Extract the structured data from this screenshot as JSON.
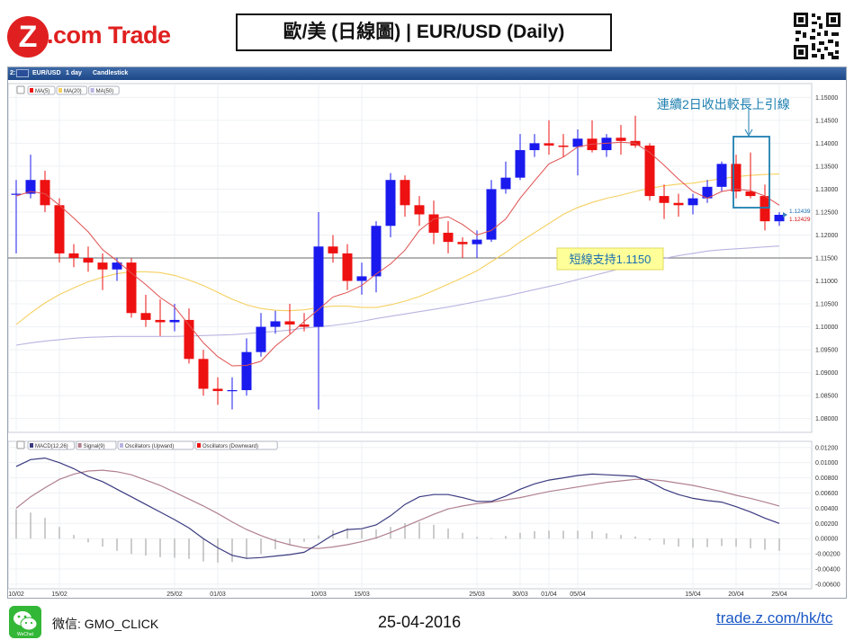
{
  "header": {
    "logo_letter": "Z",
    "logo_text": ".com Trade",
    "title": "歐/美 (日線圖) | EUR/USD  (Daily)"
  },
  "toolbar": {
    "symbol": "EUR/USD",
    "period": "1 day",
    "style": "Candlestick",
    "flag_icon": "eu-flag-icon"
  },
  "colors": {
    "up": "#1a1aee",
    "down": "#ee1111",
    "ma5": "#e05050",
    "ma20": "#f5d060",
    "ma50": "#b8b4e0",
    "macd": "#3a3a80",
    "signal": "#b08090",
    "hist": "#999999",
    "support": "#888888",
    "callout": "#1e7fb0"
  },
  "annotations": {
    "callout": "連續2日收出較長上引線",
    "support": "短線支持1.1150",
    "ask": "1.12439",
    "bid": "1.12429"
  },
  "footer": {
    "wechat_label": "WeChat",
    "wechat_id": "微信: GMO_CLICK",
    "date": "25-04-2016",
    "link": "trade.z.com/hk/tc"
  },
  "chart_data": [
    {
      "type": "candlestick",
      "title": "",
      "legend": [
        "MA(5)",
        "MA(20)",
        "MA(50)"
      ],
      "legend_position": "top-left",
      "y_ticks": [
        "1.15000",
        "1.14500",
        "1.14000",
        "1.13500",
        "1.13000",
        "1.12500",
        "1.12000",
        "1.11500",
        "1.11000",
        "1.10500",
        "1.10000",
        "1.09500",
        "1.09000",
        "1.08500",
        "1.08000"
      ],
      "ylim": [
        1.077,
        1.153
      ],
      "x_ticks": [
        {
          "label": "10/02",
          "i": 0
        },
        {
          "label": "15/02",
          "i": 3
        },
        {
          "label": "25/02",
          "i": 11
        },
        {
          "label": "01/03",
          "i": 14
        },
        {
          "label": "10/03",
          "i": 21
        },
        {
          "label": "15/03",
          "i": 24
        },
        {
          "label": "25/03",
          "i": 32
        },
        {
          "label": "30/03",
          "i": 35
        },
        {
          "label": "01/04",
          "i": 37
        },
        {
          "label": "05/04",
          "i": 39
        },
        {
          "label": "15/04",
          "i": 47
        },
        {
          "label": "20/04",
          "i": 50
        },
        {
          "label": "25/04",
          "i": 53
        }
      ],
      "candles": [
        {
          "o": 1.129,
          "h": 1.132,
          "l": 1.116,
          "c": 1.129
        },
        {
          "o": 1.129,
          "h": 1.1375,
          "l": 1.128,
          "c": 1.132
        },
        {
          "o": 1.132,
          "h": 1.134,
          "l": 1.125,
          "c": 1.1265
        },
        {
          "o": 1.1265,
          "h": 1.128,
          "l": 1.114,
          "c": 1.116
        },
        {
          "o": 1.116,
          "h": 1.118,
          "l": 1.113,
          "c": 1.115
        },
        {
          "o": 1.115,
          "h": 1.1175,
          "l": 1.112,
          "c": 1.114
        },
        {
          "o": 1.114,
          "h": 1.116,
          "l": 1.108,
          "c": 1.1125
        },
        {
          "o": 1.1125,
          "h": 1.115,
          "l": 1.11,
          "c": 1.114
        },
        {
          "o": 1.114,
          "h": 1.115,
          "l": 1.102,
          "c": 1.103
        },
        {
          "o": 1.103,
          "h": 1.107,
          "l": 1.1,
          "c": 1.1015
        },
        {
          "o": 1.1015,
          "h": 1.106,
          "l": 1.098,
          "c": 1.101
        },
        {
          "o": 1.101,
          "h": 1.105,
          "l": 1.099,
          "c": 1.1015
        },
        {
          "o": 1.1015,
          "h": 1.104,
          "l": 1.092,
          "c": 1.093
        },
        {
          "o": 1.093,
          "h": 1.095,
          "l": 1.085,
          "c": 1.0865
        },
        {
          "o": 1.0865,
          "h": 1.089,
          "l": 1.083,
          "c": 1.086
        },
        {
          "o": 1.086,
          "h": 1.089,
          "l": 1.082,
          "c": 1.0862
        },
        {
          "o": 1.0862,
          "h": 1.0975,
          "l": 1.085,
          "c": 1.0945
        },
        {
          "o": 1.0945,
          "h": 1.103,
          "l": 1.0935,
          "c": 1.1
        },
        {
          "o": 1.1,
          "h": 1.1035,
          "l": 1.0985,
          "c": 1.1012
        },
        {
          "o": 1.1012,
          "h": 1.105,
          "l": 1.0985,
          "c": 1.1005
        },
        {
          "o": 1.1005,
          "h": 1.103,
          "l": 1.099,
          "c": 1.1
        },
        {
          "o": 1.1,
          "h": 1.125,
          "l": 1.082,
          "c": 1.1175
        },
        {
          "o": 1.1175,
          "h": 1.12,
          "l": 1.114,
          "c": 1.116
        },
        {
          "o": 1.116,
          "h": 1.118,
          "l": 1.108,
          "c": 1.11
        },
        {
          "o": 1.11,
          "h": 1.114,
          "l": 1.107,
          "c": 1.111
        },
        {
          "o": 1.111,
          "h": 1.123,
          "l": 1.1075,
          "c": 1.122
        },
        {
          "o": 1.122,
          "h": 1.1335,
          "l": 1.1195,
          "c": 1.132
        },
        {
          "o": 1.132,
          "h": 1.133,
          "l": 1.124,
          "c": 1.1265
        },
        {
          "o": 1.1265,
          "h": 1.1285,
          "l": 1.122,
          "c": 1.1245
        },
        {
          "o": 1.1245,
          "h": 1.1275,
          "l": 1.118,
          "c": 1.1205
        },
        {
          "o": 1.1205,
          "h": 1.123,
          "l": 1.116,
          "c": 1.1185
        },
        {
          "o": 1.1185,
          "h": 1.1195,
          "l": 1.115,
          "c": 1.118
        },
        {
          "o": 1.118,
          "h": 1.121,
          "l": 1.115,
          "c": 1.119
        },
        {
          "o": 1.119,
          "h": 1.132,
          "l": 1.1185,
          "c": 1.13
        },
        {
          "o": 1.13,
          "h": 1.136,
          "l": 1.129,
          "c": 1.1325
        },
        {
          "o": 1.1325,
          "h": 1.142,
          "l": 1.132,
          "c": 1.1385
        },
        {
          "o": 1.1385,
          "h": 1.142,
          "l": 1.137,
          "c": 1.14
        },
        {
          "o": 1.14,
          "h": 1.145,
          "l": 1.1375,
          "c": 1.1395
        },
        {
          "o": 1.1395,
          "h": 1.142,
          "l": 1.137,
          "c": 1.1392
        },
        {
          "o": 1.1392,
          "h": 1.143,
          "l": 1.133,
          "c": 1.141
        },
        {
          "o": 1.141,
          "h": 1.145,
          "l": 1.138,
          "c": 1.1385
        },
        {
          "o": 1.1385,
          "h": 1.142,
          "l": 1.137,
          "c": 1.1412
        },
        {
          "o": 1.1412,
          "h": 1.144,
          "l": 1.1375,
          "c": 1.1405
        },
        {
          "o": 1.1405,
          "h": 1.146,
          "l": 1.139,
          "c": 1.1395
        },
        {
          "o": 1.1395,
          "h": 1.14,
          "l": 1.1275,
          "c": 1.1285
        },
        {
          "o": 1.1285,
          "h": 1.131,
          "l": 1.1235,
          "c": 1.127
        },
        {
          "o": 1.127,
          "h": 1.129,
          "l": 1.124,
          "c": 1.1265
        },
        {
          "o": 1.1265,
          "h": 1.129,
          "l": 1.1245,
          "c": 1.128
        },
        {
          "o": 1.128,
          "h": 1.132,
          "l": 1.127,
          "c": 1.1305
        },
        {
          "o": 1.1305,
          "h": 1.136,
          "l": 1.1295,
          "c": 1.1355
        },
        {
          "o": 1.1355,
          "h": 1.1375,
          "l": 1.128,
          "c": 1.1295
        },
        {
          "o": 1.1295,
          "h": 1.138,
          "l": 1.128,
          "c": 1.1285
        },
        {
          "o": 1.1285,
          "h": 1.131,
          "l": 1.121,
          "c": 1.123
        },
        {
          "o": 1.123,
          "h": 1.125,
          "l": 1.122,
          "c": 1.1244
        }
      ],
      "ma5": [
        1.1285,
        1.1295,
        1.129,
        1.1265,
        1.1237,
        1.1207,
        1.1168,
        1.1144,
        1.1117,
        1.1092,
        1.1064,
        1.1043,
        1.1004,
        1.0965,
        1.0935,
        1.0915,
        1.0916,
        1.0925,
        1.0958,
        1.0983,
        1.1012,
        1.1038,
        1.1065,
        1.1075,
        1.109,
        1.1115,
        1.1137,
        1.1167,
        1.121,
        1.1235,
        1.124,
        1.1223,
        1.12,
        1.121,
        1.1235,
        1.128,
        1.1318,
        1.1355,
        1.137,
        1.1392,
        1.1398,
        1.14,
        1.1402,
        1.14,
        1.138,
        1.1352,
        1.1322,
        1.1295,
        1.128,
        1.1295,
        1.13,
        1.1297,
        1.1285,
        1.1265
      ],
      "ma20": [
        1.1005,
        1.103,
        1.1052,
        1.107,
        1.1085,
        1.1098,
        1.1108,
        1.1116,
        1.112,
        1.112,
        1.1118,
        1.1112,
        1.1102,
        1.109,
        1.1075,
        1.106,
        1.1048,
        1.104,
        1.1036,
        1.1035,
        1.1037,
        1.1042,
        1.1045,
        1.1045,
        1.1042,
        1.1042,
        1.1048,
        1.1056,
        1.1066,
        1.1079,
        1.1093,
        1.1107,
        1.1122,
        1.1142,
        1.1162,
        1.1185,
        1.1205,
        1.1225,
        1.1245,
        1.126,
        1.1271,
        1.128,
        1.1287,
        1.1295,
        1.1302,
        1.1307,
        1.1311,
        1.1313,
        1.1318,
        1.1323,
        1.1327,
        1.133,
        1.1332,
        1.1333
      ],
      "ma50": [
        1.096,
        1.0965,
        1.0969,
        1.0972,
        1.0975,
        1.0977,
        1.0978,
        1.0979,
        1.0979,
        1.0979,
        1.0979,
        1.0979,
        1.098,
        1.0981,
        1.0982,
        1.0983,
        1.0985,
        1.0988,
        1.099,
        1.0993,
        1.0997,
        1.1,
        1.1003,
        1.1007,
        1.1012,
        1.1018,
        1.1023,
        1.1028,
        1.1033,
        1.1038,
        1.1043,
        1.1049,
        1.1055,
        1.1061,
        1.1067,
        1.1074,
        1.1081,
        1.1088,
        1.1095,
        1.1103,
        1.1111,
        1.1119,
        1.1127,
        1.1135,
        1.1142,
        1.1149,
        1.1155,
        1.116,
        1.1165,
        1.1168,
        1.117,
        1.1172,
        1.1174,
        1.1176
      ],
      "support_level": 1.115
    },
    {
      "type": "line",
      "title": "",
      "legend": [
        "MACD(12,26)",
        "Signal(9)",
        "Oscillators (Upward)",
        "Oscillators (Downward)"
      ],
      "legend_position": "top-left",
      "y_ticks": [
        "0.01200",
        "0.01000",
        "0.00800",
        "0.00600",
        "0.00400",
        "0.00200",
        "0.00000",
        "-0.00200",
        "-0.00400",
        "-0.00600"
      ],
      "ylim": [
        -0.0066,
        0.0128
      ],
      "macd": [
        0.0095,
        0.0104,
        0.0106,
        0.01,
        0.0092,
        0.0082,
        0.0075,
        0.0065,
        0.0055,
        0.0045,
        0.0035,
        0.0025,
        0.0014,
        0.0,
        -0.0012,
        -0.0022,
        -0.0026,
        -0.0025,
        -0.0023,
        -0.0021,
        -0.0018,
        -0.0007,
        0.0005,
        0.0012,
        0.0013,
        0.0018,
        0.003,
        0.0045,
        0.0055,
        0.0058,
        0.0058,
        0.0054,
        0.0049,
        0.0049,
        0.0056,
        0.0065,
        0.0072,
        0.0077,
        0.008,
        0.0083,
        0.0085,
        0.0084,
        0.0083,
        0.0082,
        0.0075,
        0.0065,
        0.0058,
        0.0053,
        0.005,
        0.0048,
        0.0042,
        0.0035,
        0.0027,
        0.002
      ],
      "signal": [
        0.004,
        0.0055,
        0.0067,
        0.0078,
        0.0085,
        0.0089,
        0.009,
        0.0088,
        0.0084,
        0.0077,
        0.007,
        0.0061,
        0.0052,
        0.0043,
        0.0033,
        0.0022,
        0.0012,
        0.0004,
        -0.0003,
        -0.0008,
        -0.0012,
        -0.0013,
        -0.0011,
        -0.0008,
        -0.0004,
        0.0001,
        0.0008,
        0.0016,
        0.0024,
        0.0032,
        0.0039,
        0.0043,
        0.0046,
        0.0048,
        0.0051,
        0.0054,
        0.0058,
        0.0062,
        0.0065,
        0.0068,
        0.0071,
        0.0074,
        0.0076,
        0.0078,
        0.0078,
        0.0076,
        0.0073,
        0.007,
        0.0066,
        0.0062,
        0.0057,
        0.0053,
        0.0048,
        0.0043
      ]
    }
  ]
}
